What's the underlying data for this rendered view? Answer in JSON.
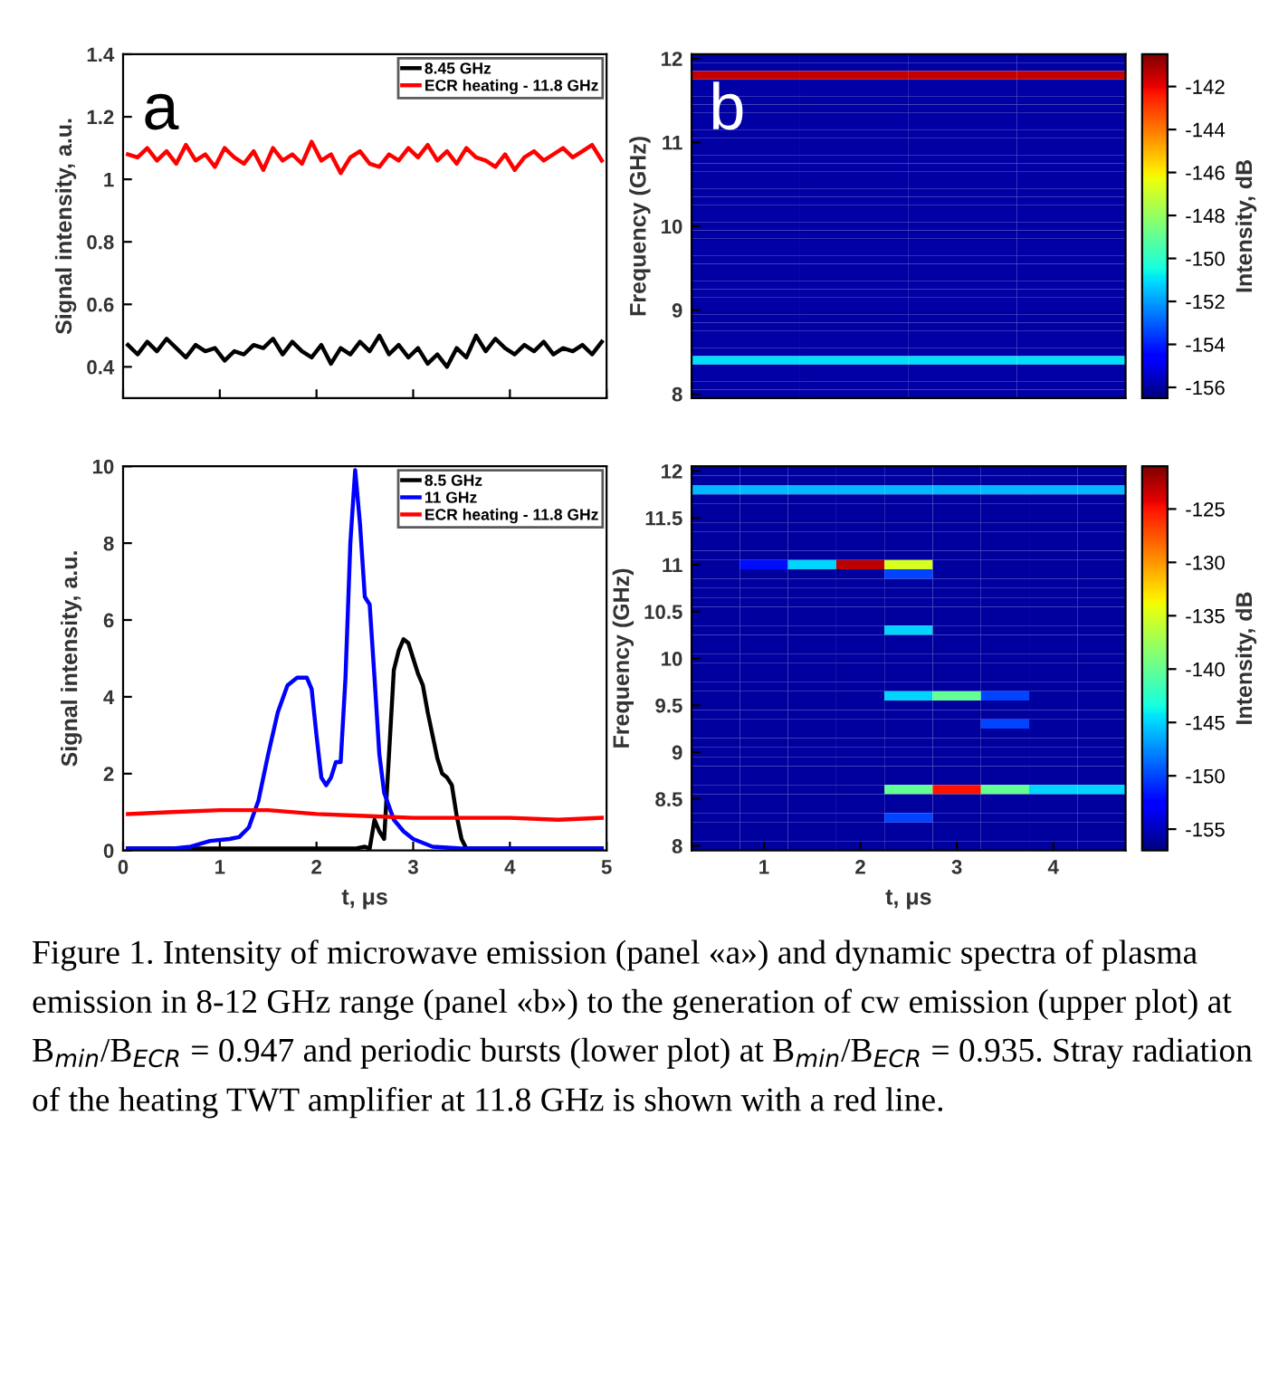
{
  "chart_data": [
    {
      "type": "line",
      "ylabel": "Signal intensity, a.u.",
      "xlim": [
        0,
        5
      ],
      "ylim": [
        0.3,
        1.4
      ],
      "xticks": [
        {
          "value": 0,
          "label": null
        },
        {
          "value": 1,
          "label": null
        },
        {
          "value": 2,
          "label": null
        },
        {
          "value": 3,
          "label": null
        },
        {
          "value": 4,
          "label": null
        },
        {
          "value": 5,
          "label": null
        }
      ],
      "yticks": [
        0.4,
        0.6,
        0.8,
        1,
        1.2,
        1.4
      ],
      "tick_labels": "y",
      "legend": "top right",
      "grid": false,
      "annotations": [
        "a"
      ],
      "x": [
        0.05,
        0.15,
        0.25,
        0.35,
        0.45,
        0.55,
        0.65,
        0.75,
        0.85,
        0.95,
        1.05,
        1.15,
        1.25,
        1.35,
        1.45,
        1.55,
        1.65,
        1.75,
        1.85,
        1.95,
        2.05,
        2.15,
        2.25,
        2.35,
        2.45,
        2.55,
        2.65,
        2.75,
        2.85,
        2.95,
        3.05,
        3.15,
        3.25,
        3.35,
        3.45,
        3.55,
        3.65,
        3.75,
        3.85,
        3.95,
        4.05,
        4.15,
        4.25,
        4.35,
        4.45,
        4.55,
        4.65,
        4.75,
        4.85,
        4.95
      ],
      "series": [
        {
          "name": "8.45 GHz",
          "color": "#000000",
          "values": [
            0.47,
            0.44,
            0.48,
            0.45,
            0.49,
            0.46,
            0.43,
            0.47,
            0.45,
            0.46,
            0.42,
            0.45,
            0.44,
            0.47,
            0.46,
            0.49,
            0.44,
            0.48,
            0.45,
            0.43,
            0.47,
            0.41,
            0.46,
            0.44,
            0.48,
            0.45,
            0.5,
            0.44,
            0.47,
            0.43,
            0.46,
            0.41,
            0.44,
            0.4,
            0.46,
            0.43,
            0.5,
            0.45,
            0.49,
            0.46,
            0.44,
            0.47,
            0.45,
            0.48,
            0.44,
            0.46,
            0.45,
            0.47,
            0.44,
            0.48
          ]
        },
        {
          "name": "ECR heating - 11.8 GHz",
          "color": "#ff0000",
          "values": [
            1.08,
            1.07,
            1.1,
            1.06,
            1.09,
            1.05,
            1.11,
            1.06,
            1.08,
            1.04,
            1.1,
            1.07,
            1.05,
            1.09,
            1.03,
            1.1,
            1.06,
            1.08,
            1.05,
            1.12,
            1.06,
            1.08,
            1.02,
            1.07,
            1.09,
            1.05,
            1.04,
            1.08,
            1.06,
            1.1,
            1.07,
            1.11,
            1.06,
            1.09,
            1.05,
            1.1,
            1.07,
            1.06,
            1.04,
            1.08,
            1.03,
            1.07,
            1.09,
            1.06,
            1.08,
            1.1,
            1.07,
            1.09,
            1.11,
            1.06
          ]
        }
      ]
    },
    {
      "type": "heatmap",
      "ylabel": "Frequency (GHz)",
      "clabel": "Intensity, dB",
      "clim": [
        -156.5,
        -140.5
      ],
      "cticks": [
        -142,
        -144,
        -146,
        -148,
        -150,
        -152,
        -154,
        -156
      ],
      "annotations": [
        "b"
      ],
      "categories": [
        null,
        null,
        null,
        null
      ],
      "y_categories": [
        "12",
        null,
        null,
        null,
        null,
        null,
        null,
        null,
        null,
        null,
        "11",
        null,
        null,
        null,
        null,
        null,
        null,
        null,
        null,
        null,
        "10",
        null,
        null,
        null,
        null,
        null,
        null,
        null,
        null,
        null,
        "9",
        null,
        null,
        null,
        null,
        null,
        null,
        null,
        null,
        null,
        "8"
      ],
      "cells": [
        [
          -156,
          -156,
          -156,
          -156
        ],
        [
          -156,
          -156,
          -156,
          -156
        ],
        [
          -141.5,
          -141.5,
          -141.5,
          -141.5
        ],
        [
          -156,
          -156,
          -156,
          -156
        ],
        [
          -156,
          -156,
          -156,
          -156
        ],
        [
          -156,
          -156,
          -156,
          -156
        ],
        [
          -156,
          -156,
          -156,
          -156
        ],
        [
          -156,
          -156,
          -156,
          -156
        ],
        [
          -156,
          -156,
          -156,
          -156
        ],
        [
          -156,
          -156,
          -156,
          -156
        ],
        [
          -156,
          -156,
          -156,
          -156
        ],
        [
          -156,
          -156,
          -156,
          -156
        ],
        [
          -156,
          -156,
          -156,
          -156
        ],
        [
          -156,
          -156,
          -156,
          -156
        ],
        [
          -156,
          -156,
          -156,
          -156
        ],
        [
          -156,
          -156,
          -156,
          -156
        ],
        [
          -156,
          -156,
          -156,
          -156
        ],
        [
          -156,
          -156,
          -156,
          -156
        ],
        [
          -156,
          -156,
          -156,
          -156
        ],
        [
          -156,
          -156,
          -156,
          -156
        ],
        [
          -156,
          -156,
          -156,
          -156
        ],
        [
          -156,
          -156,
          -156,
          -156
        ],
        [
          -156,
          -156,
          -156,
          -156
        ],
        [
          -156,
          -156,
          -156,
          -156
        ],
        [
          -156,
          -156,
          -156,
          -156
        ],
        [
          -156,
          -156,
          -156,
          -156
        ],
        [
          -156,
          -156,
          -156,
          -156
        ],
        [
          -156,
          -156,
          -156,
          -156
        ],
        [
          -156,
          -156,
          -156,
          -156
        ],
        [
          -156,
          -156,
          -156,
          -156
        ],
        [
          -156,
          -156,
          -156,
          -156
        ],
        [
          -156,
          -156,
          -156,
          -156
        ],
        [
          -156,
          -156,
          -156,
          -156
        ],
        [
          -156,
          -156,
          -156,
          -156
        ],
        [
          -156,
          -156,
          -156,
          -156
        ],
        [
          -156,
          -156,
          -156,
          -156
        ],
        [
          -151,
          -151,
          -151,
          -151
        ],
        [
          -156,
          -156,
          -156,
          -156
        ],
        [
          -156,
          -156,
          -156,
          -156
        ],
        [
          -156,
          -156,
          -156,
          -156
        ],
        [
          -156,
          -156,
          -156,
          -156
        ]
      ]
    },
    {
      "type": "line",
      "xlabel": "t, μs",
      "ylabel": "Signal intensity, a.u.",
      "xlim": [
        0,
        5
      ],
      "ylim": [
        0,
        10
      ],
      "xticks": [
        0,
        1,
        2,
        3,
        4,
        5
      ],
      "yticks": [
        0,
        2,
        4,
        6,
        8,
        10
      ],
      "legend": "top right",
      "grid": false,
      "series": [
        {
          "name": "8.5 GHz",
          "color": "#000000",
          "x": [
            0.05,
            1,
            2,
            2.4,
            2.5,
            2.55,
            2.6,
            2.65,
            2.7,
            2.75,
            2.8,
            2.85,
            2.9,
            2.95,
            3.0,
            3.05,
            3.1,
            3.15,
            3.2,
            3.25,
            3.3,
            3.35,
            3.4,
            3.45,
            3.5,
            3.55,
            4,
            4.95
          ],
          "values": [
            0.05,
            0.05,
            0.05,
            0.05,
            0.1,
            0.05,
            0.8,
            0.5,
            0.3,
            2.5,
            4.7,
            5.2,
            5.5,
            5.4,
            5.0,
            4.6,
            4.3,
            3.6,
            3.0,
            2.4,
            2.0,
            1.9,
            1.7,
            0.9,
            0.3,
            0.05,
            0.05,
            0.05
          ]
        },
        {
          "name": "11 GHz",
          "color": "#0000ff",
          "x": [
            0.05,
            0.5,
            0.7,
            0.9,
            1.1,
            1.2,
            1.3,
            1.4,
            1.5,
            1.6,
            1.7,
            1.8,
            1.9,
            1.95,
            2.0,
            2.05,
            2.1,
            2.15,
            2.2,
            2.25,
            2.3,
            2.35,
            2.4,
            2.45,
            2.5,
            2.55,
            2.6,
            2.65,
            2.7,
            2.8,
            2.9,
            3.0,
            3.2,
            3.5,
            4,
            4.95
          ],
          "values": [
            0.05,
            0.05,
            0.1,
            0.25,
            0.3,
            0.35,
            0.6,
            1.3,
            2.5,
            3.6,
            4.3,
            4.5,
            4.5,
            4.2,
            3.0,
            1.9,
            1.7,
            1.9,
            2.3,
            2.3,
            4.5,
            8.0,
            9.9,
            8.5,
            6.6,
            6.4,
            4.5,
            2.5,
            1.5,
            0.8,
            0.5,
            0.3,
            0.1,
            0.05,
            0.05,
            0.05
          ]
        },
        {
          "name": "ECR heating - 11.8 GHz",
          "color": "#ff0000",
          "x": [
            0.05,
            0.5,
            1,
            1.5,
            2,
            2.5,
            3,
            3.5,
            4,
            4.5,
            4.95
          ],
          "values": [
            0.95,
            1.0,
            1.05,
            1.05,
            0.95,
            0.9,
            0.85,
            0.85,
            0.85,
            0.8,
            0.85
          ]
        }
      ]
    },
    {
      "type": "heatmap",
      "xlabel": "t, μs",
      "ylabel": "Frequency (GHz)",
      "clabel": "Intensity, dB",
      "clim": [
        -157,
        -121
      ],
      "cticks": [
        -125,
        -130,
        -135,
        -140,
        -145,
        -150,
        -155
      ],
      "annotations": [
        "Figure 1. Intensity of microwave emission (panel «a») and dynamic spectra of plasma emission in 8-12 GHz range (panel «b») to the generation of cw emission (upper plot) at B$_{min}$/B$_{ECR}$ = 0.947 and periodic bursts (lower plot) at B$_{min}$/B$_{ECR}$ = 0.935. Stray radiation of the heating TWT amplifier at 11.8 GHz is shown with a red line."
      ],
      "categories": [
        null,
        "1",
        null,
        "2",
        null,
        "3",
        null,
        "4",
        null
      ],
      "y_categories": [
        "12",
        null,
        null,
        null,
        null,
        "11.5",
        null,
        null,
        null,
        null,
        "11",
        null,
        null,
        null,
        null,
        "10.5",
        null,
        null,
        null,
        null,
        "10",
        null,
        null,
        null,
        null,
        "9.5",
        null,
        null,
        null,
        null,
        "9",
        null,
        null,
        null,
        null,
        "8.5",
        null,
        null,
        null,
        null,
        "8"
      ],
      "cells": [
        [
          -156,
          -156,
          -156,
          -156,
          -156,
          -156,
          -156,
          -156,
          -156
        ],
        [
          -156,
          -156,
          -156,
          -156,
          -156,
          -156,
          -156,
          -156,
          -156
        ],
        [
          -146,
          -146,
          -146,
          -146,
          -146,
          -146,
          -146,
          -146,
          -146
        ],
        [
          -156,
          -156,
          -156,
          -156,
          -156,
          -156,
          -156,
          -156,
          -156
        ],
        [
          -156,
          -156,
          -156,
          -156,
          -156,
          -156,
          -156,
          -156,
          -156
        ],
        [
          -156,
          -156,
          -156,
          -156,
          -156,
          -156,
          -156,
          -156,
          -156
        ],
        [
          -156,
          -156,
          -156,
          -156,
          -156,
          -156,
          -156,
          -156,
          -156
        ],
        [
          -156,
          -156,
          -156,
          -156,
          -156,
          -156,
          -156,
          -156,
          -156
        ],
        [
          -156,
          -156,
          -156,
          -156,
          -156,
          -156,
          -156,
          -156,
          -156
        ],
        [
          -156,
          -156,
          -156,
          -156,
          -156,
          -156,
          -156,
          -156,
          -156
        ],
        [
          -156,
          -152,
          -145,
          -123,
          -135,
          -156,
          -156,
          -156,
          -156
        ],
        [
          -156,
          -156,
          -156,
          -156,
          -150,
          -156,
          -156,
          -156,
          -156
        ],
        [
          -156,
          -156,
          -156,
          -156,
          -156,
          -156,
          -156,
          -156,
          -156
        ],
        [
          -156,
          -156,
          -156,
          -156,
          -156,
          -156,
          -156,
          -156,
          -156
        ],
        [
          -156,
          -156,
          -156,
          -156,
          -156,
          -156,
          -156,
          -156,
          -156
        ],
        [
          -156,
          -156,
          -156,
          -156,
          -156,
          -156,
          -156,
          -156,
          -156
        ],
        [
          -156,
          -156,
          -156,
          -156,
          -156,
          -156,
          -156,
          -156,
          -156
        ],
        [
          -156,
          -156,
          -156,
          -156,
          -145,
          -156,
          -156,
          -156,
          -156
        ],
        [
          -156,
          -156,
          -156,
          -156,
          -156,
          -156,
          -156,
          -156,
          -156
        ],
        [
          -156,
          -156,
          -156,
          -156,
          -156,
          -156,
          -156,
          -156,
          -156
        ],
        [
          -156,
          -156,
          -156,
          -156,
          -156,
          -156,
          -156,
          -156,
          -156
        ],
        [
          -156,
          -156,
          -156,
          -156,
          -156,
          -156,
          -156,
          -156,
          -156
        ],
        [
          -156,
          -156,
          -156,
          -156,
          -156,
          -156,
          -156,
          -156,
          -156
        ],
        [
          -156,
          -156,
          -156,
          -156,
          -156,
          -156,
          -156,
          -156,
          -156
        ],
        [
          -156,
          -156,
          -156,
          -156,
          -145,
          -140,
          -150,
          -156,
          -156
        ],
        [
          -156,
          -156,
          -156,
          -156,
          -156,
          -156,
          -156,
          -156,
          -156
        ],
        [
          -156,
          -156,
          -156,
          -156,
          -156,
          -156,
          -156,
          -156,
          -156
        ],
        [
          -156,
          -156,
          -156,
          -156,
          -156,
          -156,
          -150,
          -156,
          -156
        ],
        [
          -156,
          -156,
          -156,
          -156,
          -156,
          -156,
          -156,
          -156,
          -156
        ],
        [
          -156,
          -156,
          -156,
          -156,
          -156,
          -156,
          -156,
          -156,
          -156
        ],
        [
          -156,
          -156,
          -156,
          -156,
          -156,
          -156,
          -156,
          -156,
          -156
        ],
        [
          -156,
          -156,
          -156,
          -156,
          -156,
          -156,
          -156,
          -156,
          -156
        ],
        [
          -156,
          -156,
          -156,
          -156,
          -156,
          -156,
          -156,
          -156,
          -156
        ],
        [
          -156,
          -156,
          -156,
          -156,
          -156,
          -156,
          -156,
          -156,
          -156
        ],
        [
          -156,
          -156,
          -156,
          -156,
          -140,
          -125,
          -140,
          -145,
          -145
        ],
        [
          -156,
          -156,
          -156,
          -156,
          -156,
          -156,
          -156,
          -156,
          -156
        ],
        [
          -156,
          -156,
          -156,
          -156,
          -156,
          -156,
          -156,
          -156,
          -156
        ],
        [
          -156,
          -156,
          -156,
          -156,
          -150,
          -156,
          -156,
          -156,
          -156
        ],
        [
          -156,
          -156,
          -156,
          -156,
          -156,
          -156,
          -156,
          -156,
          -156
        ],
        [
          -156,
          -156,
          -156,
          -156,
          -156,
          -156,
          -156,
          -156,
          -156
        ],
        [
          -156,
          -156,
          -156,
          -156,
          -156,
          -156,
          -156,
          -156,
          -156
        ]
      ]
    }
  ]
}
